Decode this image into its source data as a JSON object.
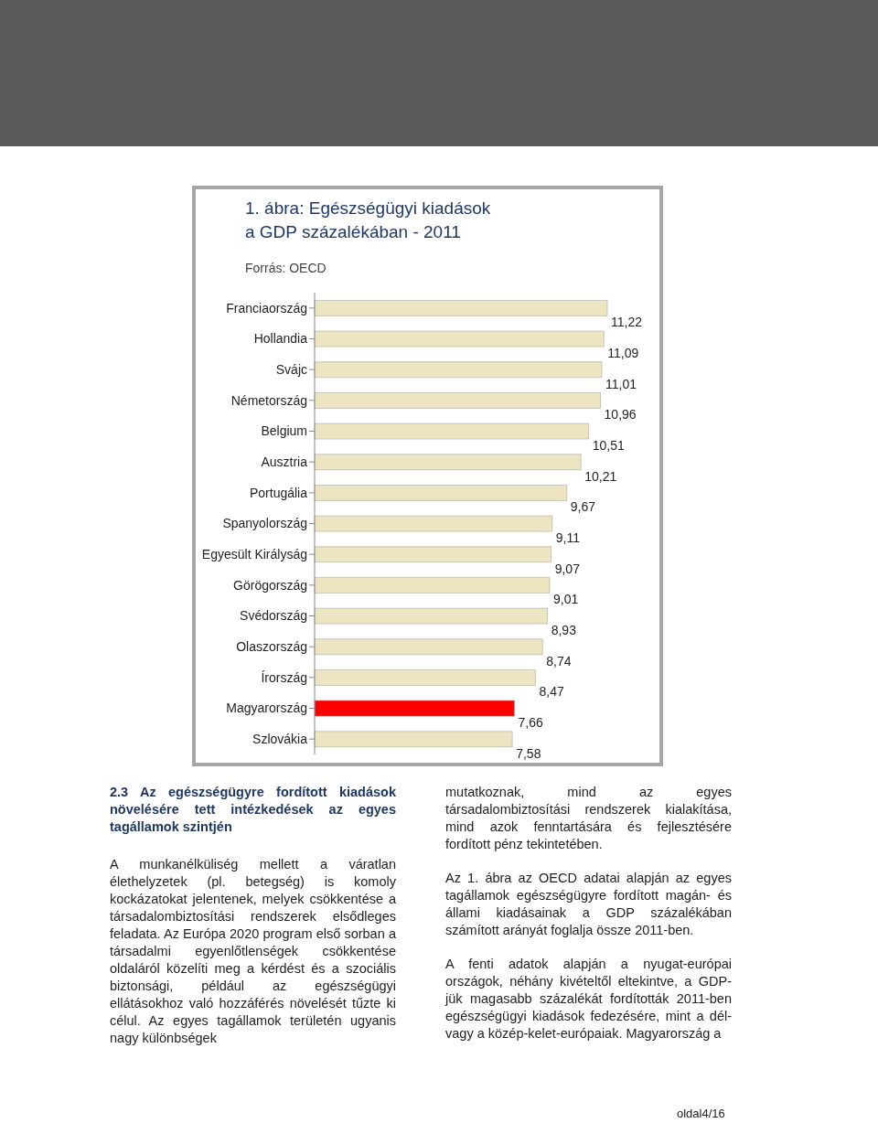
{
  "chart_data": {
    "type": "bar",
    "orientation": "horizontal",
    "title": "1. ábra: Egészségügyi kiadások\na GDP százalékában - 2011",
    "subtitle": "Forrás: OECD",
    "categories": [
      "Franciaország",
      "Hollandia",
      "Svájc",
      "Németország",
      "Belgium",
      "Ausztria",
      "Portugália",
      "Spanyolország",
      "Egyesült Királyság",
      "Görögország",
      "Svédország",
      "Olaszország",
      "Írország",
      "Magyarország",
      "Szlovákia"
    ],
    "values": [
      11.22,
      11.09,
      11.01,
      10.96,
      10.51,
      10.21,
      9.67,
      9.11,
      9.07,
      9.01,
      8.93,
      8.74,
      8.47,
      7.66,
      7.58
    ],
    "value_labels": [
      "11,22",
      "11,09",
      "11,01",
      "10,96",
      "10,51",
      "10,21",
      "9,67",
      "9,11",
      "9,07",
      "9,01",
      "8,93",
      "8,74",
      "8,47",
      "7,66",
      "7,58"
    ],
    "colors": [
      "#ede4c2",
      "#ede4c2",
      "#ede4c2",
      "#ede4c2",
      "#ede4c2",
      "#ede4c2",
      "#ede4c2",
      "#ede4c2",
      "#ede4c2",
      "#ede4c2",
      "#ede4c2",
      "#ede4c2",
      "#ede4c2",
      "#ff0000",
      "#ede4c2"
    ],
    "legend": false,
    "grid": false,
    "annotations": [
      "2.3 Az egészségügyre fordított kiadások növelésére tett intézkedések az egyes tagállamok szintjén",
      "A munkanélküliség mellett a váratlan élethelyzetek (pl. betegség) is komoly kockázatokat jelentenek, melyek csökkentése a társadalombiztosítási rendszerek elsődleges feladata. Az Európa 2020 program első sorban a társadalmi egyenlőtlenségek csökkentése oldaláról közelíti meg a kérdést és a szociális biztonsági, például az egészségügyi ellátásokhoz való hozzáférés növelését tűzte ki célul. Az egyes tagállamok területén ugyanis nagy különbségek",
      "mutatkoznak, mind az egyes társadalombiztosítási rendszerek kialakítása, mind azok fenntartására és fejlesztésére fordított pénz tekintetében.",
      "Az 1. ábra az OECD adatai alapján az egyes tagállamok egészségügyre fordított magán- és állami kiadásainak a GDP százalékában számított arányát foglalja össze 2011-ben.",
      "A fenti adatok alapján a nyugat-európai országok, néhány kivételtől eltekintve, a GDP-jük magasabb százalékát fordították 2011-ben egészségügyi kiadások fedezésére, mint a dél- vagy a közép-kelet-európaiak. Magyarország a",
      "oldal4/16"
    ]
  }
}
